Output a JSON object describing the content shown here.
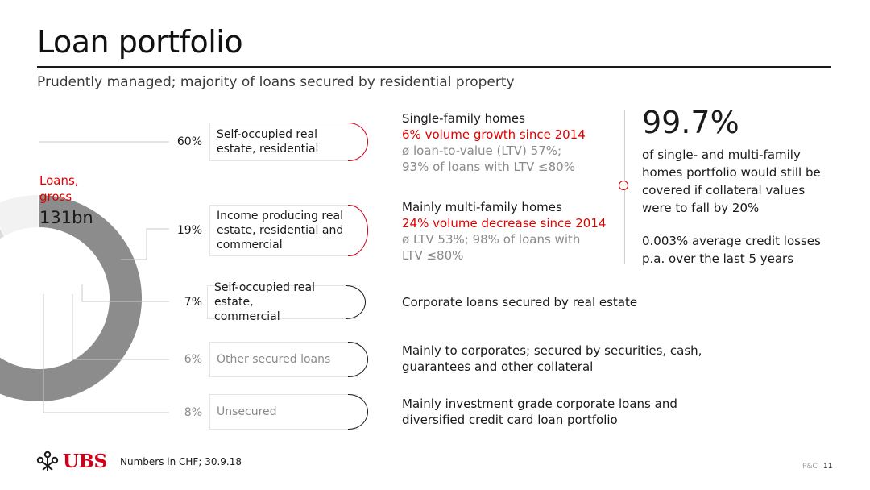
{
  "page": {
    "title": "Loan portfolio",
    "subtitle": "Prudently managed; majority of loans secured by residential property"
  },
  "donut": {
    "label": "Loans, gross",
    "value": "131bn"
  },
  "chart_data": {
    "type": "pie",
    "categories": [
      "Self-occupied real estate, residential",
      "Income producing real estate, residential and commercial",
      "Self-occupied real estate, commercial",
      "Other secured loans",
      "Unsecured"
    ],
    "values": [
      60,
      19,
      7,
      6,
      8
    ],
    "value_labels": [
      "60%",
      "19%",
      "7%",
      "6%",
      "8%"
    ],
    "slice_colors": [
      "#8c8c8c",
      "#ababab",
      "#c4c4c4",
      "#dcdcdc",
      "#f2f2f2"
    ],
    "title": "",
    "style": "donut, partially visible (left portion cropped)"
  },
  "segments": [
    {
      "pct": "60%",
      "label": "Self-occupied real estate, residential",
      "desc_lines": [
        "Single-family homes"
      ],
      "desc_red": "6% volume growth since 2014",
      "desc_grey": [
        "ø loan-to-value (LTV) 57%;",
        "93% of loans with LTV ≤80%"
      ]
    },
    {
      "pct": "19%",
      "label": "Income producing real estate, residential and commercial",
      "desc_lines": [
        "Mainly multi-family homes"
      ],
      "desc_red": "24% volume decrease since 2014",
      "desc_grey": [
        "ø LTV 53%; 98% of loans with",
        "LTV ≤80%"
      ]
    },
    {
      "pct": "7%",
      "label": "Self-occupied real estate, commercial",
      "desc_lines": [
        "Corporate loans secured by real estate"
      ]
    },
    {
      "pct": "6%",
      "label": "Other secured loans",
      "desc_lines": [
        "Mainly to corporates; secured by securities, cash,",
        "guarantees and other collateral"
      ]
    },
    {
      "pct": "8%",
      "label": "Unsecured",
      "desc_lines": [
        "Mainly investment grade corporate loans and",
        "diversified credit card loan portfolio"
      ]
    }
  ],
  "box_text": {
    "s0": [
      "Self-occupied real",
      "estate, residential"
    ],
    "s1": [
      "Income producing real",
      "estate, residential and",
      "commercial"
    ],
    "s2": [
      "Self-occupied real estate,",
      "commercial"
    ],
    "s3": [
      "Other secured loans"
    ],
    "s4": [
      "Unsecured"
    ]
  },
  "highlight": {
    "number": "99.7%",
    "text": "of single- and multi-family homes portfolio would still be covered if collateral values were to fall by 20%",
    "credit_losses": "0.003% average credit losses p.a. over the last 5 years"
  },
  "footer": {
    "logo": "UBS",
    "note": "Numbers in CHF; 30.9.18",
    "tag": "P&C",
    "page": "11"
  },
  "colors": {
    "accent_red": "#e00000",
    "logo_red": "#d0001a",
    "muted_text": "#8a8a8a"
  }
}
